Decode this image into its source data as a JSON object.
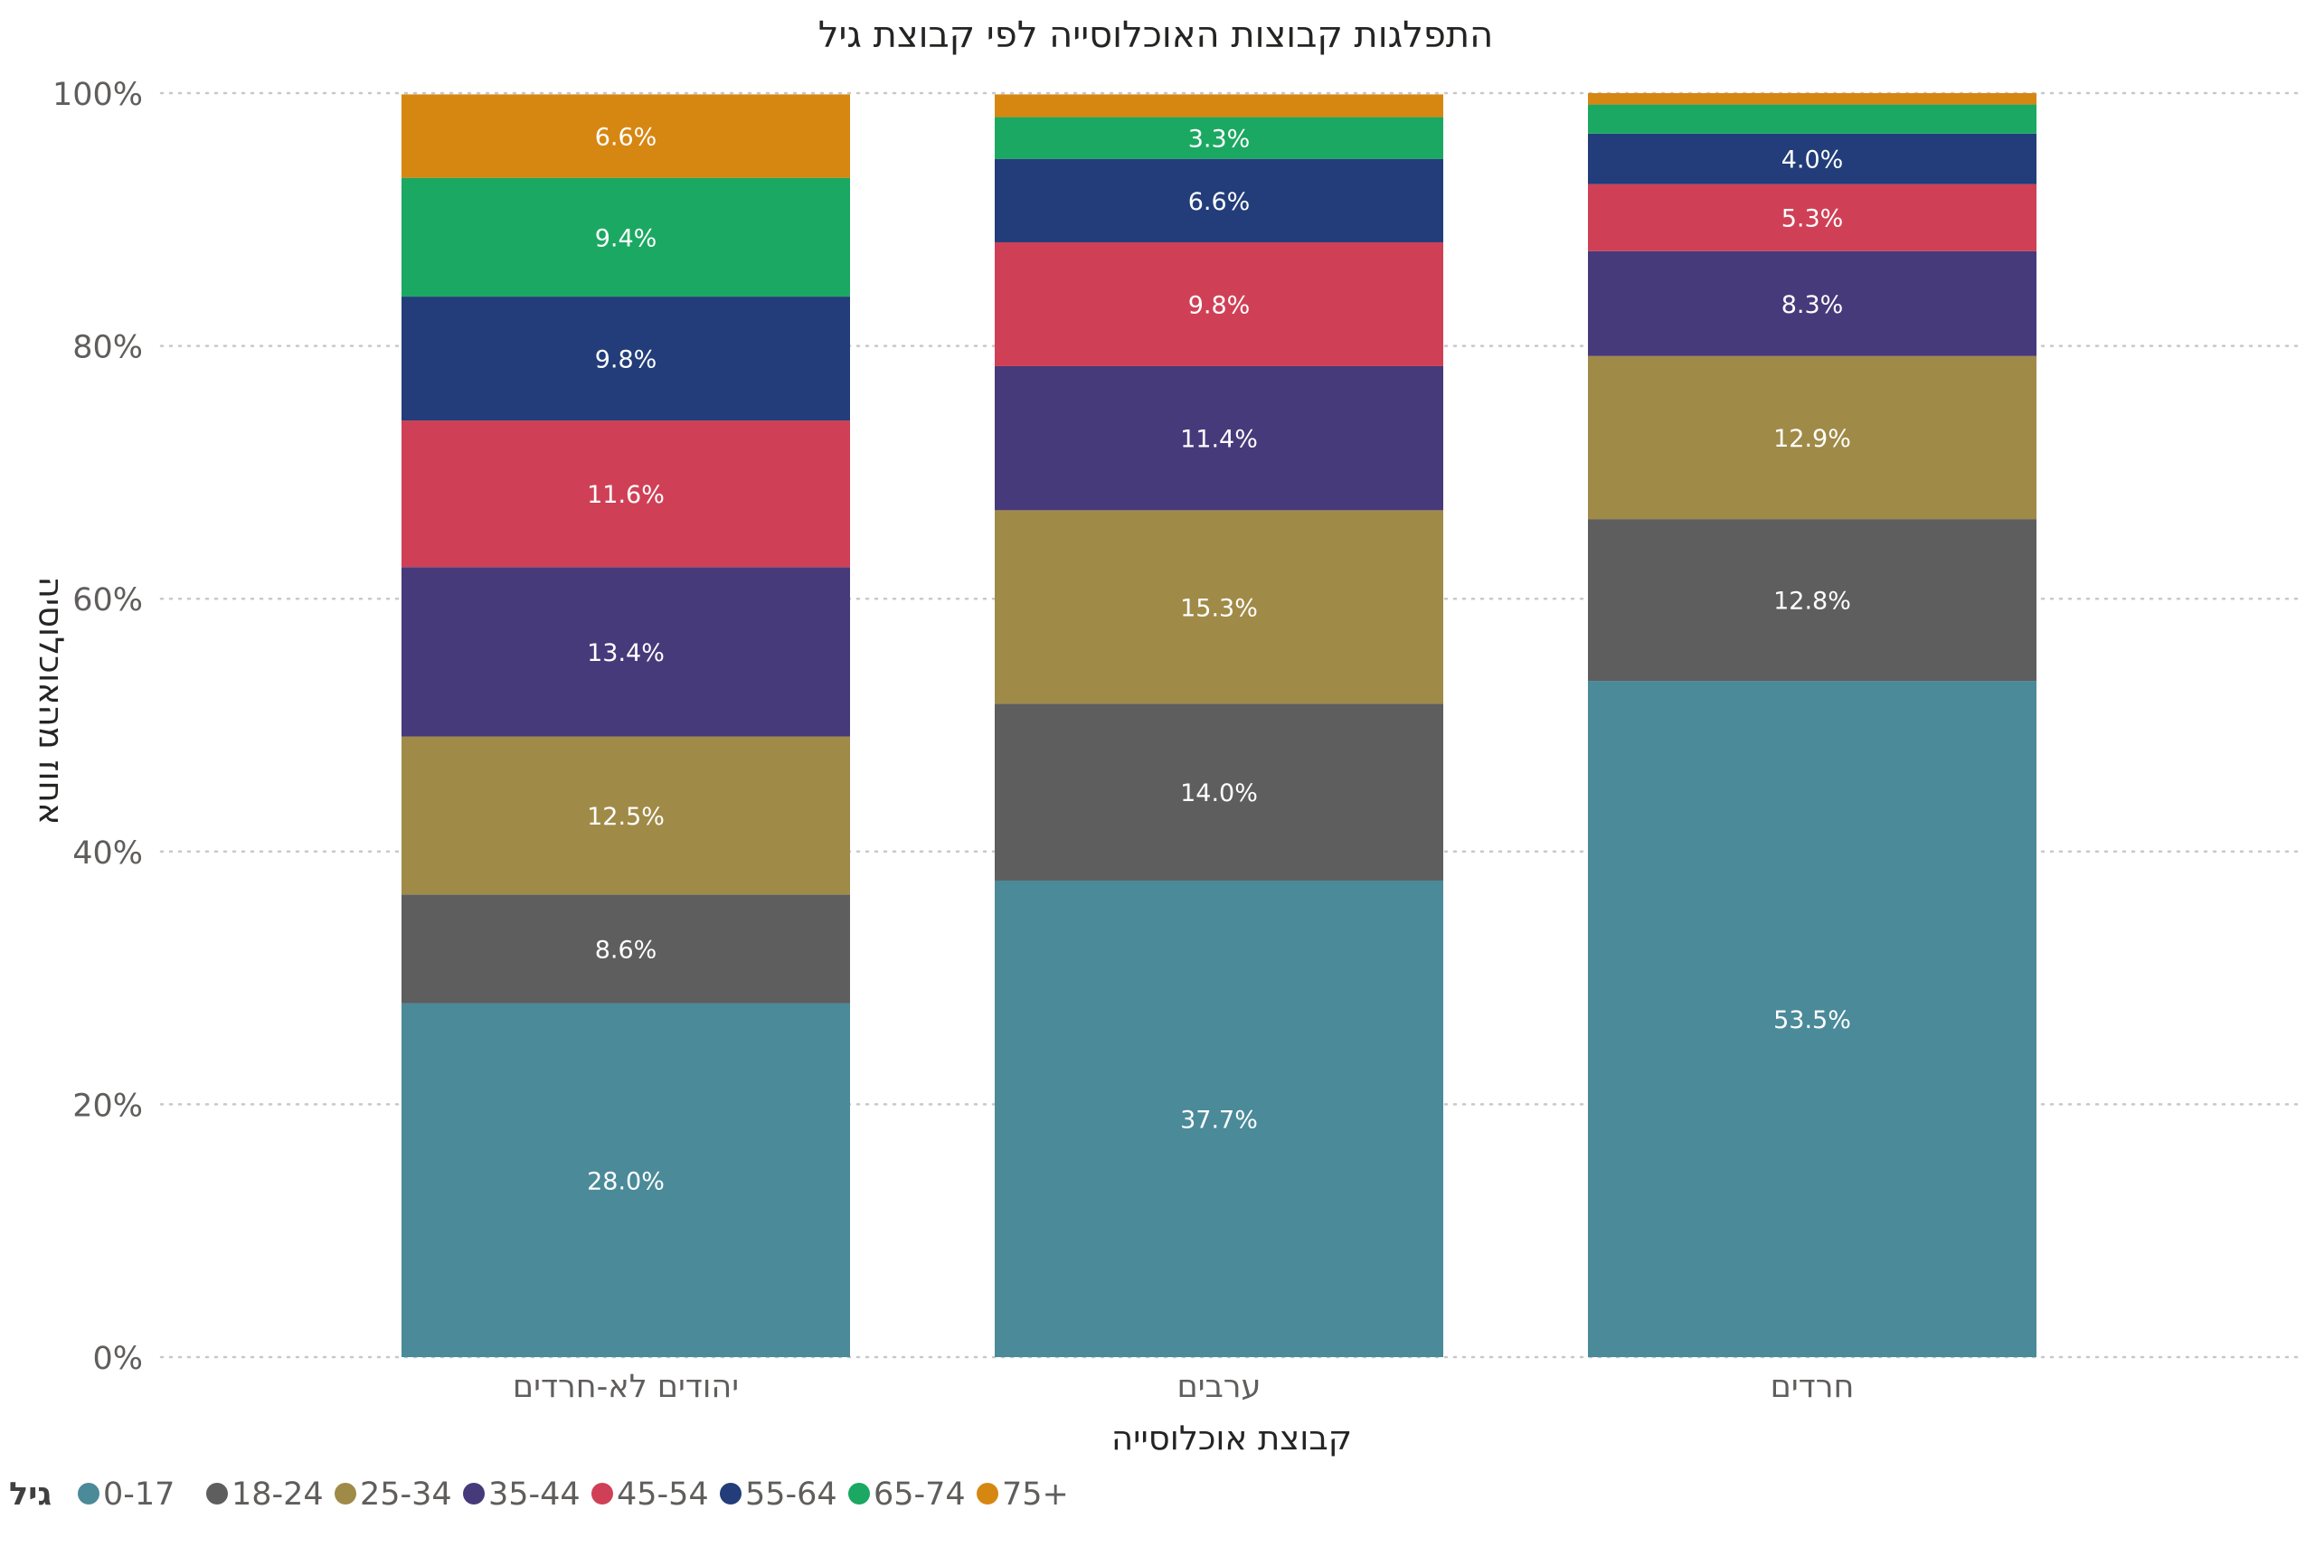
{
  "chart_data": {
    "type": "bar",
    "stacked": true,
    "title": "התפלגות קבוצות האוכלוסייה לפי קבוצת גיל",
    "xlabel": "קבוצת אוכלוסייה",
    "ylabel": "אחוז מהאוכלוסיה",
    "ylim": [
      0,
      100
    ],
    "y_ticks": [
      "0%",
      "20%",
      "40%",
      "60%",
      "80%",
      "100%"
    ],
    "grid": "horizontal dotted",
    "legend_title": "גיל",
    "legend_position": "bottom-left",
    "categories": [
      "יהודים לא-חרדים",
      "ערבים",
      "חרדים"
    ],
    "series": [
      {
        "name": "0-17",
        "color": "#4a8a99",
        "values": [
          28.0,
          37.7,
          53.5
        ],
        "labels": [
          "28.0%",
          "37.7%",
          "53.5%"
        ]
      },
      {
        "name": "18-24",
        "color": "#5e5e5e",
        "values": [
          8.6,
          14.0,
          12.8
        ],
        "labels": [
          "8.6%",
          "14.0%",
          "12.8%"
        ]
      },
      {
        "name": "25-34",
        "color": "#a08a47",
        "values": [
          12.5,
          15.3,
          12.9
        ],
        "labels": [
          "12.5%",
          "15.3%",
          "12.9%"
        ]
      },
      {
        "name": "35-44",
        "color": "#473a7a",
        "values": [
          13.4,
          11.4,
          8.3
        ],
        "labels": [
          "13.4%",
          "11.4%",
          "8.3%"
        ]
      },
      {
        "name": "45-54",
        "color": "#cf4056",
        "values": [
          11.6,
          9.8,
          5.3
        ],
        "labels": [
          "11.6%",
          "9.8%",
          "5.3%"
        ]
      },
      {
        "name": "55-64",
        "color": "#223d7a",
        "values": [
          9.8,
          6.6,
          4.0
        ],
        "labels": [
          "9.8%",
          "6.6%",
          "4.0%"
        ]
      },
      {
        "name": "65-74",
        "color": "#1ba862",
        "values": [
          9.4,
          3.3,
          2.3
        ],
        "labels": [
          "9.4%",
          "3.3%",
          ""
        ]
      },
      {
        "name": "75+",
        "color": "#d68712",
        "values": [
          6.6,
          1.8,
          0.9
        ],
        "labels": [
          "6.6%",
          "",
          ""
        ]
      }
    ]
  }
}
